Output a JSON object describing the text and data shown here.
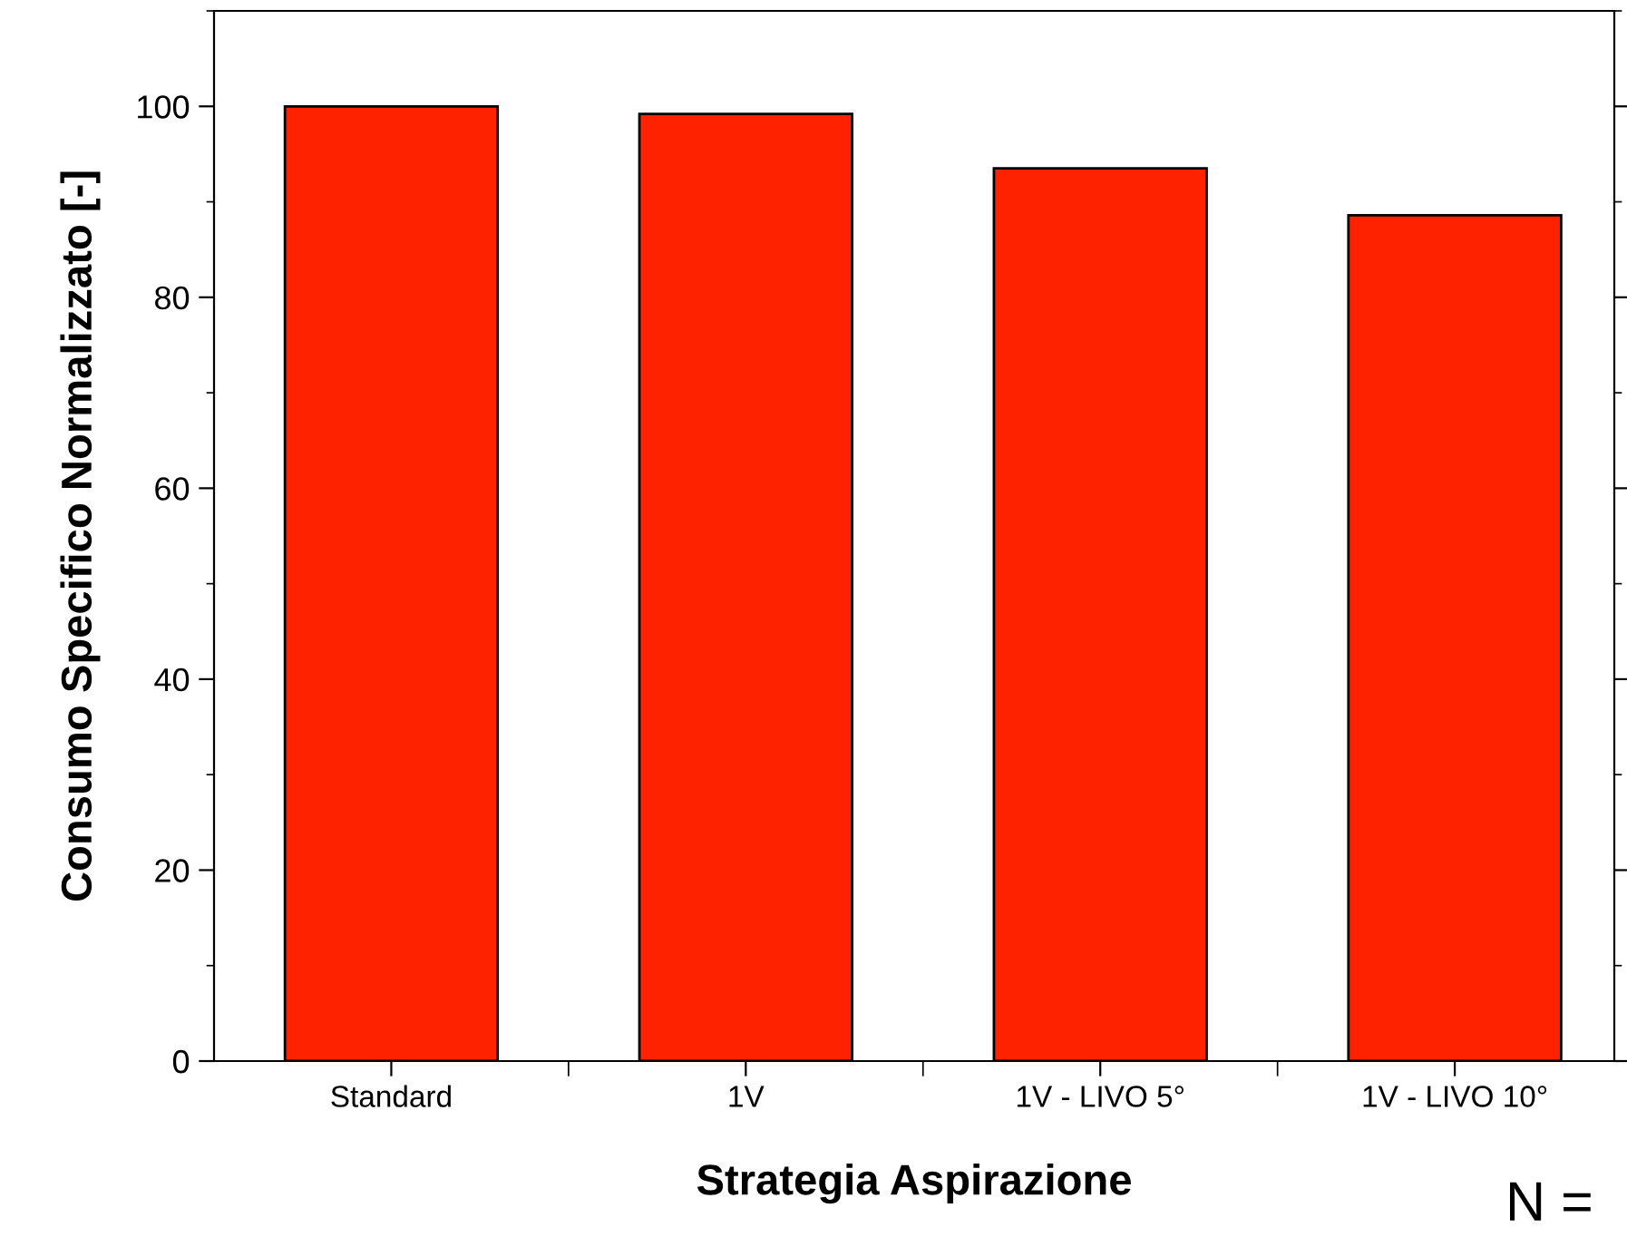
{
  "chart_data": {
    "type": "bar",
    "xlabel": "Strategia Aspirazione",
    "ylabel": "Consumo Specifico Normalizzato [-]",
    "categories": [
      "Standard",
      "1V",
      "1V - LIVO 5°",
      "1V - LIVO 10°"
    ],
    "values": [
      100,
      99.2,
      93.5,
      88.6
    ],
    "color": "#ff2200",
    "ylim": [
      0,
      110
    ],
    "yticks": [
      0,
      20,
      40,
      60,
      80,
      100
    ],
    "grid": false,
    "annotations": [
      "N ="
    ]
  }
}
